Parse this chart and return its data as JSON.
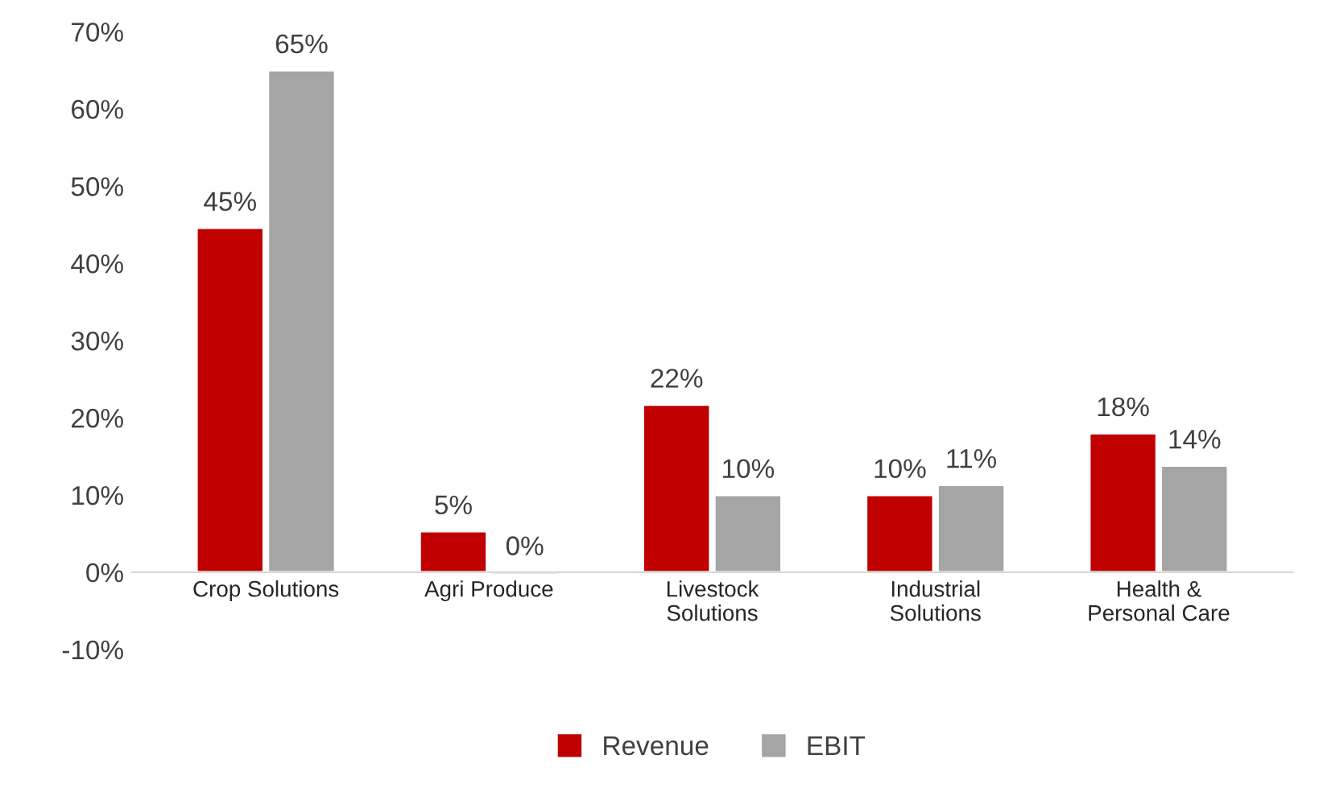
{
  "chart_data": {
    "type": "bar",
    "categories": [
      "Crop Solutions",
      "Agri Produce",
      "Livestock\nSolutions",
      "Industrial\nSolutions",
      "Health &\nPersonal Care"
    ],
    "series": [
      {
        "name": "Revenue",
        "color": "#c00000",
        "values": [
          44.6,
          5.3,
          21.7,
          10.0,
          18.0
        ],
        "value_labels": [
          "45%",
          "5%",
          "22%",
          "10%",
          "18%"
        ]
      },
      {
        "name": "EBIT",
        "color": "#a5a5a5",
        "values": [
          65.0,
          -0.3,
          10.0,
          11.3,
          13.8
        ],
        "value_labels": [
          "65%",
          "0%",
          "10%",
          "11%",
          "14%"
        ]
      }
    ],
    "ylim": [
      -10,
      70
    ],
    "yticks": [
      {
        "value": -10,
        "label": "-10%"
      },
      {
        "value": 0,
        "label": "0%"
      },
      {
        "value": 10,
        "label": "10%"
      },
      {
        "value": 20,
        "label": "20%"
      },
      {
        "value": 30,
        "label": "30%"
      },
      {
        "value": 40,
        "label": "40%"
      },
      {
        "value": 50,
        "label": "50%"
      },
      {
        "value": 60,
        "label": "60%"
      },
      {
        "value": 70,
        "label": "70%"
      }
    ],
    "grid": false,
    "legend": "bottom"
  }
}
